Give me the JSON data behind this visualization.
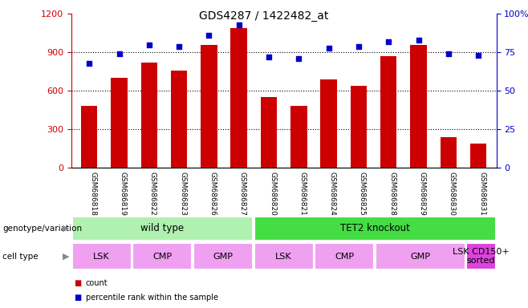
{
  "title": "GDS4287 / 1422482_at",
  "samples": [
    "GSM686818",
    "GSM686819",
    "GSM686822",
    "GSM686823",
    "GSM686826",
    "GSM686827",
    "GSM686820",
    "GSM686821",
    "GSM686824",
    "GSM686825",
    "GSM686828",
    "GSM686829",
    "GSM686830",
    "GSM686831"
  ],
  "counts": [
    480,
    700,
    820,
    760,
    960,
    1090,
    550,
    480,
    690,
    640,
    870,
    960,
    240,
    190
  ],
  "percentile": [
    68,
    74,
    80,
    79,
    86,
    93,
    72,
    71,
    78,
    79,
    82,
    83,
    74,
    73
  ],
  "bar_color": "#cc0000",
  "dot_color": "#0000cc",
  "ylim_left": [
    0,
    1200
  ],
  "ylim_right": [
    0,
    100
  ],
  "yticks_left": [
    0,
    300,
    600,
    900,
    1200
  ],
  "yticks_right": [
    0,
    25,
    50,
    75,
    100
  ],
  "grid_lines": [
    300,
    600,
    900
  ],
  "genotype_groups": [
    {
      "label": "wild type",
      "start": 0,
      "end": 6,
      "color": "#b0f0b0"
    },
    {
      "label": "TET2 knockout",
      "start": 6,
      "end": 14,
      "color": "#44dd44"
    }
  ],
  "cell_type_groups": [
    {
      "label": "LSK",
      "start": 0,
      "end": 2,
      "color": "#f0a0f0"
    },
    {
      "label": "CMP",
      "start": 2,
      "end": 4,
      "color": "#f0a0f0"
    },
    {
      "label": "GMP",
      "start": 4,
      "end": 6,
      "color": "#f0a0f0"
    },
    {
      "label": "LSK",
      "start": 6,
      "end": 8,
      "color": "#f0a0f0"
    },
    {
      "label": "CMP",
      "start": 8,
      "end": 10,
      "color": "#f0a0f0"
    },
    {
      "label": "GMP",
      "start": 10,
      "end": 13,
      "color": "#f0a0f0"
    },
    {
      "label": "LSK CD150+\nsorted",
      "start": 13,
      "end": 14,
      "color": "#dd44dd"
    }
  ],
  "left_axis_color": "#cc0000",
  "right_axis_color": "#0000cc",
  "tick_label_area_color": "#c8c8c8",
  "left_label_color": "#555555"
}
